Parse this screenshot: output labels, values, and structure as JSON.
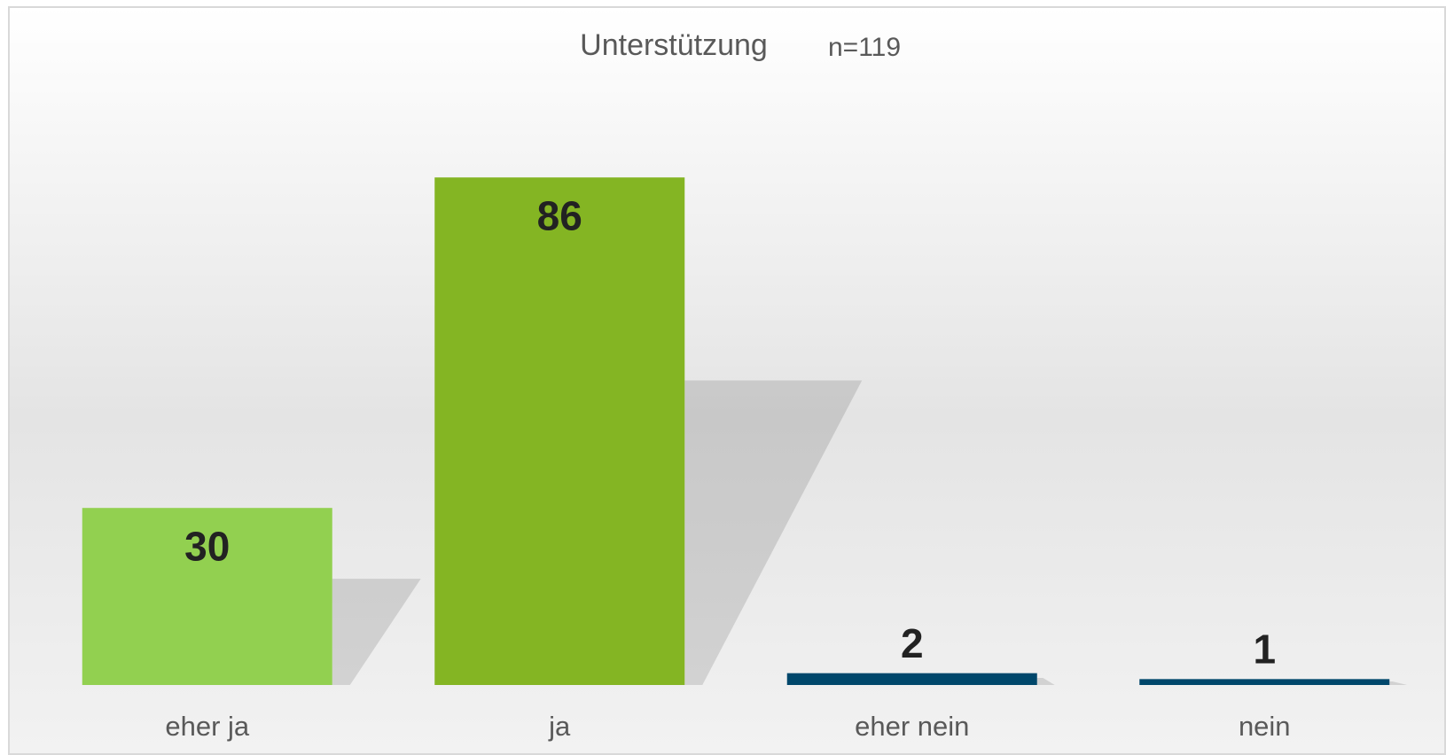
{
  "chart_data": {
    "type": "bar",
    "title": "Unterstützung",
    "subtitle": "n=119",
    "categories": [
      "eher ja",
      "ja",
      "eher nein",
      "nein"
    ],
    "values": [
      30,
      86,
      2,
      1
    ],
    "colors": [
      "#92d050",
      "#84b523",
      "#00476b",
      "#00476b"
    ],
    "ylim": [
      0,
      100
    ]
  }
}
